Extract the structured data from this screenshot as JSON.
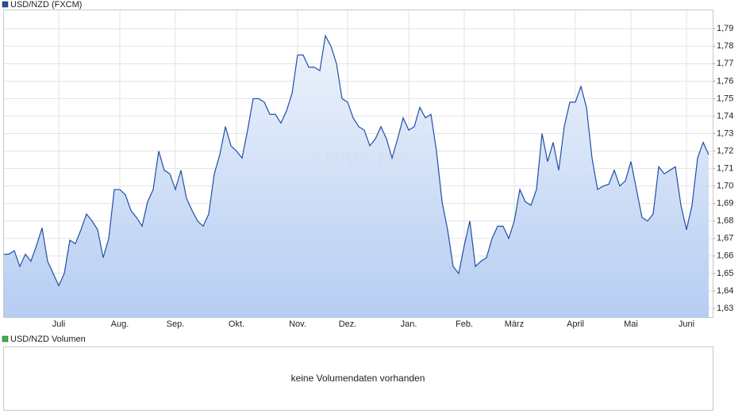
{
  "chart_data": {
    "type": "line",
    "series": [
      {
        "name": "USD/NZD (FXCM)",
        "color": "#1f4fa8",
        "values": [
          1.661,
          1.661,
          1.663,
          1.654,
          1.661,
          1.657,
          1.666,
          1.676,
          1.657,
          1.65,
          1.643,
          1.65,
          1.669,
          1.667,
          1.675,
          1.684,
          1.68,
          1.675,
          1.659,
          1.67,
          1.698,
          1.698,
          1.695,
          1.686,
          1.682,
          1.677,
          1.691,
          1.698,
          1.72,
          1.709,
          1.707,
          1.698,
          1.709,
          1.693,
          1.686,
          1.68,
          1.677,
          1.684,
          1.707,
          1.718,
          1.734,
          1.723,
          1.72,
          1.716,
          1.732,
          1.75,
          1.75,
          1.748,
          1.741,
          1.741,
          1.736,
          1.743,
          1.753,
          1.775,
          1.775,
          1.768,
          1.768,
          1.766,
          1.786,
          1.78,
          1.77,
          1.75,
          1.748,
          1.739,
          1.734,
          1.732,
          1.723,
          1.727,
          1.734,
          1.727,
          1.716,
          1.727,
          1.739,
          1.732,
          1.734,
          1.745,
          1.739,
          1.741,
          1.72,
          1.691,
          1.675,
          1.654,
          1.65,
          1.666,
          1.68,
          1.654,
          1.657,
          1.659,
          1.67,
          1.677,
          1.677,
          1.67,
          1.68,
          1.698,
          1.691,
          1.689,
          1.698,
          1.73,
          1.714,
          1.725,
          1.709,
          1.734,
          1.748,
          1.748,
          1.757,
          1.745,
          1.716,
          1.698,
          1.7,
          1.701,
          1.709,
          1.7,
          1.703,
          1.714,
          1.698,
          1.682,
          1.68,
          1.684,
          1.711,
          1.707,
          1.709,
          1.711,
          1.689,
          1.675,
          1.689,
          1.716,
          1.725,
          1.718
        ]
      }
    ],
    "categories": [
      null,
      null,
      null,
      null,
      null,
      null,
      null,
      null,
      null,
      null,
      "Juli",
      null,
      null,
      null,
      null,
      null,
      null,
      null,
      null,
      null,
      null,
      "Aug.",
      null,
      null,
      null,
      null,
      null,
      null,
      null,
      null,
      null,
      "Sep.",
      null,
      null,
      null,
      null,
      null,
      null,
      null,
      null,
      null,
      null,
      "Okt.",
      null,
      null,
      null,
      null,
      null,
      null,
      null,
      null,
      null,
      null,
      "Nov.",
      null,
      null,
      null,
      null,
      null,
      null,
      null,
      null,
      "Dez.",
      null,
      null,
      null,
      null,
      null,
      null,
      null,
      null,
      null,
      null,
      "Jan.",
      null,
      null,
      null,
      null,
      null,
      null,
      null,
      null,
      null,
      "Feb.",
      null,
      null,
      null,
      null,
      null,
      null,
      null,
      null,
      "März",
      null,
      null,
      null,
      null,
      null,
      null,
      null,
      null,
      null,
      null,
      "April",
      null,
      null,
      null,
      null,
      null,
      null,
      null,
      null,
      null,
      "Mai",
      null,
      null,
      null,
      null,
      null,
      null,
      null,
      null,
      null,
      "Juni",
      null,
      null,
      null,
      null
    ],
    "ylim": [
      1.625,
      1.801
    ],
    "yticks": [
      {
        "value": 1.63,
        "label": "1,63"
      },
      {
        "value": 1.64,
        "label": "1,64"
      },
      {
        "value": 1.65,
        "label": "1,65"
      },
      {
        "value": 1.66,
        "label": "1,66"
      },
      {
        "value": 1.67,
        "label": "1,67"
      },
      {
        "value": 1.68,
        "label": "1,68"
      },
      {
        "value": 1.69,
        "label": "1,69"
      },
      {
        "value": 1.7,
        "label": "1,70"
      },
      {
        "value": 1.71,
        "label": "1,71"
      },
      {
        "value": 1.72,
        "label": "1,72"
      },
      {
        "value": 1.73,
        "label": "1,73"
      },
      {
        "value": 1.74,
        "label": "1,74"
      },
      {
        "value": 1.75,
        "label": "1,75"
      },
      {
        "value": 1.76,
        "label": "1,76"
      },
      {
        "value": 1.77,
        "label": "1,77"
      },
      {
        "value": 1.78,
        "label": "1,78"
      },
      {
        "value": 1.79,
        "label": "1,79"
      }
    ],
    "grid": true,
    "watermark": "ARIVA.DE"
  },
  "volume_panel": {
    "legend": "USD/NZD Volumen",
    "legend_color": "#3cb44b",
    "message": "keine Volumendaten vorhanden"
  }
}
